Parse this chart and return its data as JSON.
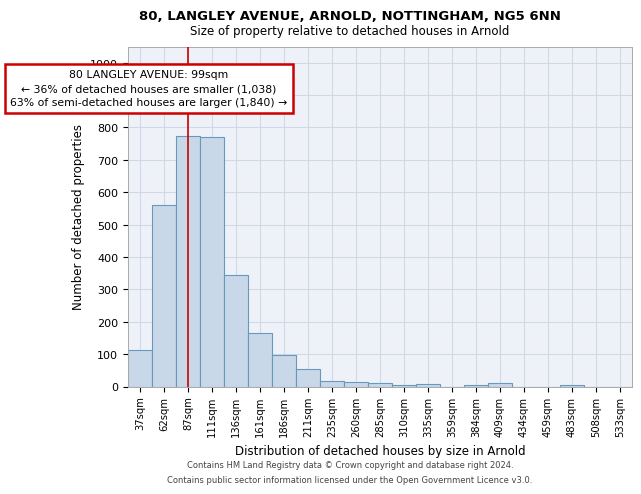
{
  "title": "80, LANGLEY AVENUE, ARNOLD, NOTTINGHAM, NG5 6NN",
  "subtitle": "Size of property relative to detached houses in Arnold",
  "xlabel": "Distribution of detached houses by size in Arnold",
  "ylabel": "Number of detached properties",
  "categories": [
    "37sqm",
    "62sqm",
    "87sqm",
    "111sqm",
    "136sqm",
    "161sqm",
    "186sqm",
    "211sqm",
    "235sqm",
    "260sqm",
    "285sqm",
    "310sqm",
    "335sqm",
    "359sqm",
    "384sqm",
    "409sqm",
    "434sqm",
    "459sqm",
    "483sqm",
    "508sqm",
    "533sqm"
  ],
  "values": [
    112,
    560,
    775,
    770,
    345,
    165,
    98,
    55,
    18,
    14,
    10,
    5,
    8,
    0,
    5,
    10,
    0,
    0,
    5,
    0,
    0
  ],
  "bar_color": "#c8d8e8",
  "bar_edge_color": "#6699bb",
  "bar_edge_width": 0.8,
  "red_line_x": 2.0,
  "annotation_title": "80 LANGLEY AVENUE: 99sqm",
  "annotation_line1": "← 36% of detached houses are smaller (1,038)",
  "annotation_line2": "63% of semi-detached houses are larger (1,840) →",
  "annotation_box_color": "#ffffff",
  "annotation_box_edge": "#cc0000",
  "red_line_color": "#cc0000",
  "ylim": [
    0,
    1050
  ],
  "yticks": [
    0,
    100,
    200,
    300,
    400,
    500,
    600,
    700,
    800,
    900,
    1000
  ],
  "grid_color": "#d0d8e8",
  "background_color": "#eef2f8",
  "footer1": "Contains HM Land Registry data © Crown copyright and database right 2024.",
  "footer2": "Contains public sector information licensed under the Open Government Licence v3.0."
}
